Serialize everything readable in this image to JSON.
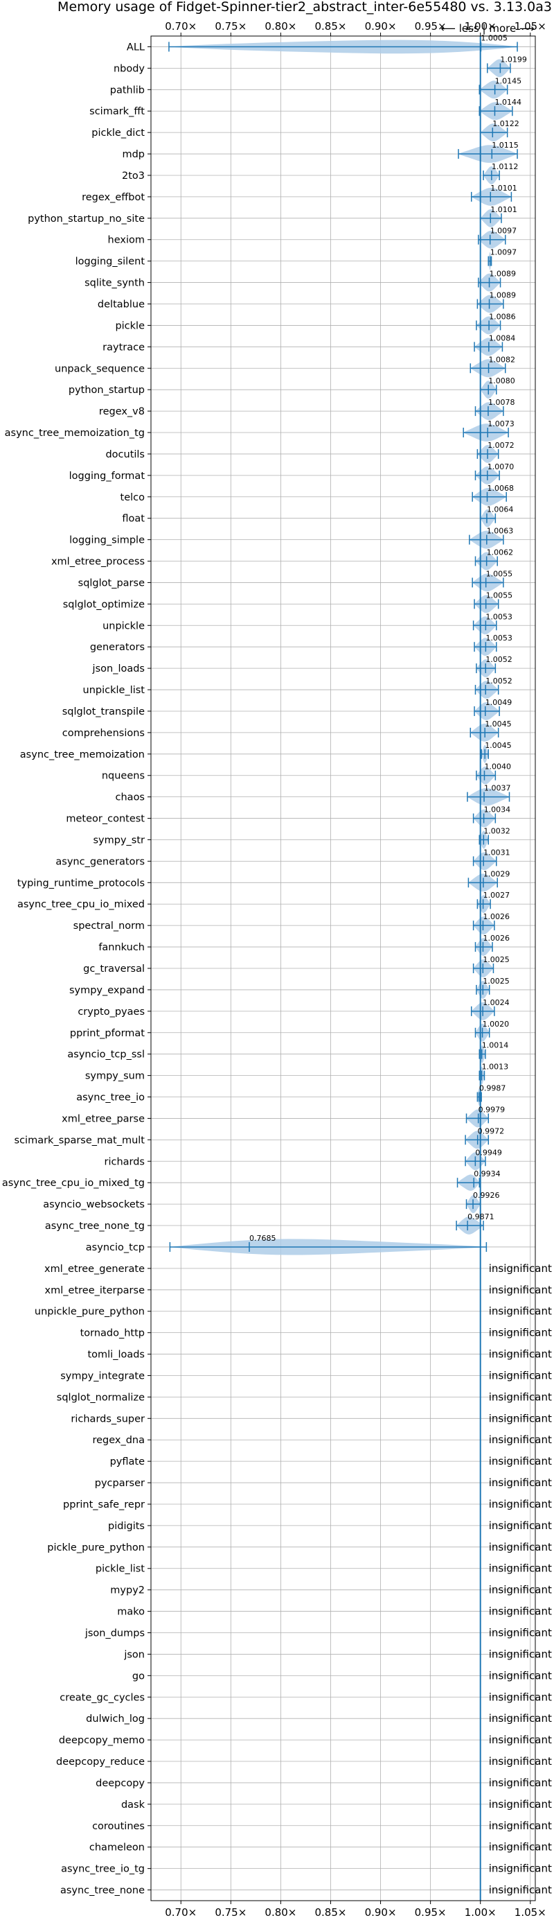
{
  "chart_data": {
    "type": "violin",
    "title": "Memory usage of Fidget-Spinner-tier2_abstract_inter-6e55480 vs. 3.13.0a3",
    "xlabel": "",
    "ylabel": "",
    "xlim": [
      0.67,
      1.055
    ],
    "xticks": [
      0.7,
      0.75,
      0.8,
      0.85,
      0.9,
      0.95,
      1.0,
      1.05
    ],
    "xtick_labels": [
      "0.70×",
      "0.75×",
      "0.80×",
      "0.85×",
      "0.90×",
      "0.95×",
      "1.00×",
      "1.05×"
    ],
    "direction_label": "⟵ less | more ⟶",
    "reference_line": 1.0,
    "grid": true,
    "insignificant_label": "insignificant",
    "color": "#1f77b4",
    "violin_color": "#aecde8",
    "benchmarks": [
      {
        "name": "ALL",
        "value": 1.0005,
        "label": "1.0005",
        "min": 0.688,
        "max": 1.037
      },
      {
        "name": "nbody",
        "value": 1.0199,
        "label": "1.0199",
        "min": 1.007,
        "max": 1.03
      },
      {
        "name": "pathlib",
        "value": 1.0145,
        "label": "1.0145",
        "min": 0.999,
        "max": 1.027
      },
      {
        "name": "scimark_fft",
        "value": 1.0144,
        "label": "1.0144",
        "min": 0.999,
        "max": 1.032
      },
      {
        "name": "pickle_dict",
        "value": 1.0122,
        "label": "1.0122",
        "min": 1.0,
        "max": 1.027
      },
      {
        "name": "mdp",
        "value": 1.0115,
        "label": "1.0115",
        "min": 0.978,
        "max": 1.037
      },
      {
        "name": "2to3",
        "value": 1.0112,
        "label": "1.0112",
        "min": 1.003,
        "max": 1.019
      },
      {
        "name": "regex_effbot",
        "value": 1.0101,
        "label": "1.0101",
        "min": 0.991,
        "max": 1.031
      },
      {
        "name": "python_startup_no_site",
        "value": 1.0101,
        "label": "1.0101",
        "min": 1.0,
        "max": 1.021
      },
      {
        "name": "hexiom",
        "value": 1.0097,
        "label": "1.0097",
        "min": 0.998,
        "max": 1.025
      },
      {
        "name": "logging_silent",
        "value": 1.0097,
        "label": "1.0097",
        "min": 1.008,
        "max": 1.011
      },
      {
        "name": "sqlite_synth",
        "value": 1.0089,
        "label": "1.0089",
        "min": 0.998,
        "max": 1.02
      },
      {
        "name": "deltablue",
        "value": 1.0089,
        "label": "1.0089",
        "min": 0.997,
        "max": 1.023
      },
      {
        "name": "pickle",
        "value": 1.0086,
        "label": "1.0086",
        "min": 0.996,
        "max": 1.02
      },
      {
        "name": "raytrace",
        "value": 1.0084,
        "label": "1.0084",
        "min": 0.994,
        "max": 1.022
      },
      {
        "name": "unpack_sequence",
        "value": 1.0082,
        "label": "1.0082",
        "min": 0.99,
        "max": 1.025
      },
      {
        "name": "python_startup",
        "value": 1.008,
        "label": "1.0080",
        "min": 1.0,
        "max": 1.016
      },
      {
        "name": "regex_v8",
        "value": 1.0078,
        "label": "1.0078",
        "min": 0.995,
        "max": 1.023
      },
      {
        "name": "async_tree_memoization_tg",
        "value": 1.0073,
        "label": "1.0073",
        "min": 0.983,
        "max": 1.028
      },
      {
        "name": "docutils",
        "value": 1.0072,
        "label": "1.0072",
        "min": 0.997,
        "max": 1.018
      },
      {
        "name": "logging_format",
        "value": 1.007,
        "label": "1.0070",
        "min": 0.995,
        "max": 1.019
      },
      {
        "name": "telco",
        "value": 1.0068,
        "label": "1.0068",
        "min": 0.992,
        "max": 1.026
      },
      {
        "name": "float",
        "value": 1.0064,
        "label": "1.0064",
        "min": 1.0,
        "max": 1.015
      },
      {
        "name": "logging_simple",
        "value": 1.0063,
        "label": "1.0063",
        "min": 0.989,
        "max": 1.023
      },
      {
        "name": "xml_etree_process",
        "value": 1.0062,
        "label": "1.0062",
        "min": 0.995,
        "max": 1.017
      },
      {
        "name": "sqlglot_parse",
        "value": 1.0055,
        "label": "1.0055",
        "min": 0.992,
        "max": 1.023
      },
      {
        "name": "sqlglot_optimize",
        "value": 1.0055,
        "label": "1.0055",
        "min": 0.994,
        "max": 1.018
      },
      {
        "name": "unpickle",
        "value": 1.0053,
        "label": "1.0053",
        "min": 0.993,
        "max": 1.016
      },
      {
        "name": "generators",
        "value": 1.0053,
        "label": "1.0053",
        "min": 0.994,
        "max": 1.016
      },
      {
        "name": "json_loads",
        "value": 1.0052,
        "label": "1.0052",
        "min": 0.996,
        "max": 1.015
      },
      {
        "name": "unpickle_list",
        "value": 1.0052,
        "label": "1.0052",
        "min": 0.995,
        "max": 1.018
      },
      {
        "name": "sqlglot_transpile",
        "value": 1.0049,
        "label": "1.0049",
        "min": 0.994,
        "max": 1.019
      },
      {
        "name": "comprehensions",
        "value": 1.0045,
        "label": "1.0045",
        "min": 0.99,
        "max": 1.018
      },
      {
        "name": "async_tree_memoization",
        "value": 1.0045,
        "label": "1.0045",
        "min": 1.001,
        "max": 1.008
      },
      {
        "name": "nqueens",
        "value": 1.004,
        "label": "1.0040",
        "min": 0.996,
        "max": 1.015
      },
      {
        "name": "chaos",
        "value": 1.0037,
        "label": "1.0037",
        "min": 0.987,
        "max": 1.029
      },
      {
        "name": "meteor_contest",
        "value": 1.0034,
        "label": "1.0034",
        "min": 0.993,
        "max": 1.015
      },
      {
        "name": "sympy_str",
        "value": 1.0032,
        "label": "1.0032",
        "min": 0.999,
        "max": 1.008
      },
      {
        "name": "async_generators",
        "value": 1.0031,
        "label": "1.0031",
        "min": 0.993,
        "max": 1.016
      },
      {
        "name": "typing_runtime_protocols",
        "value": 1.0029,
        "label": "1.0029",
        "min": 0.988,
        "max": 1.017
      },
      {
        "name": "async_tree_cpu_io_mixed",
        "value": 1.0027,
        "label": "1.0027",
        "min": 0.997,
        "max": 1.01
      },
      {
        "name": "spectral_norm",
        "value": 1.0026,
        "label": "1.0026",
        "min": 0.993,
        "max": 1.014
      },
      {
        "name": "fannkuch",
        "value": 1.0026,
        "label": "1.0026",
        "min": 0.995,
        "max": 1.012
      },
      {
        "name": "gc_traversal",
        "value": 1.0025,
        "label": "1.0025",
        "min": 0.993,
        "max": 1.013
      },
      {
        "name": "sympy_expand",
        "value": 1.0025,
        "label": "1.0025",
        "min": 0.996,
        "max": 1.009
      },
      {
        "name": "crypto_pyaes",
        "value": 1.0024,
        "label": "1.0024",
        "min": 0.991,
        "max": 1.014
      },
      {
        "name": "pprint_pformat",
        "value": 1.002,
        "label": "1.0020",
        "min": 0.995,
        "max": 1.009
      },
      {
        "name": "asyncio_tcp_ssl",
        "value": 1.0014,
        "label": "1.0014",
        "min": 0.999,
        "max": 1.005
      },
      {
        "name": "sympy_sum",
        "value": 1.0013,
        "label": "1.0013",
        "min": 0.999,
        "max": 1.004
      },
      {
        "name": "async_tree_io",
        "value": 0.9987,
        "label": "0.9987",
        "min": 0.997,
        "max": 1.001
      },
      {
        "name": "xml_etree_parse",
        "value": 0.9979,
        "label": "0.9979",
        "min": 0.986,
        "max": 1.008
      },
      {
        "name": "scimark_sparse_mat_mult",
        "value": 0.9972,
        "label": "0.9972",
        "min": 0.985,
        "max": 1.008
      },
      {
        "name": "richards",
        "value": 0.9949,
        "label": "0.9949",
        "min": 0.985,
        "max": 1.005
      },
      {
        "name": "async_tree_cpu_io_mixed_tg",
        "value": 0.9934,
        "label": "0.9934",
        "min": 0.977,
        "max": 0.999
      },
      {
        "name": "asyncio_websockets",
        "value": 0.9926,
        "label": "0.9926",
        "min": 0.986,
        "max": 1.0
      },
      {
        "name": "async_tree_none_tg",
        "value": 0.9871,
        "label": "0.9871",
        "min": 0.976,
        "max": 1.003
      },
      {
        "name": "asyncio_tcp",
        "value": 0.7685,
        "label": "0.7685",
        "min": 0.689,
        "max": 1.006
      },
      {
        "name": "xml_etree_generate",
        "label": "insignificant"
      },
      {
        "name": "xml_etree_iterparse",
        "label": "insignificant"
      },
      {
        "name": "unpickle_pure_python",
        "label": "insignificant"
      },
      {
        "name": "tornado_http",
        "label": "insignificant"
      },
      {
        "name": "tomli_loads",
        "label": "insignificant"
      },
      {
        "name": "sympy_integrate",
        "label": "insignificant"
      },
      {
        "name": "sqlglot_normalize",
        "label": "insignificant"
      },
      {
        "name": "richards_super",
        "label": "insignificant"
      },
      {
        "name": "regex_dna",
        "label": "insignificant"
      },
      {
        "name": "pyflate",
        "label": "insignificant"
      },
      {
        "name": "pycparser",
        "label": "insignificant"
      },
      {
        "name": "pprint_safe_repr",
        "label": "insignificant"
      },
      {
        "name": "pidigits",
        "label": "insignificant"
      },
      {
        "name": "pickle_pure_python",
        "label": "insignificant"
      },
      {
        "name": "pickle_list",
        "label": "insignificant"
      },
      {
        "name": "mypy2",
        "label": "insignificant"
      },
      {
        "name": "mako",
        "label": "insignificant"
      },
      {
        "name": "json_dumps",
        "label": "insignificant"
      },
      {
        "name": "json",
        "label": "insignificant"
      },
      {
        "name": "go",
        "label": "insignificant"
      },
      {
        "name": "create_gc_cycles",
        "label": "insignificant"
      },
      {
        "name": "dulwich_log",
        "label": "insignificant"
      },
      {
        "name": "deepcopy_memo",
        "label": "insignificant"
      },
      {
        "name": "deepcopy_reduce",
        "label": "insignificant"
      },
      {
        "name": "deepcopy",
        "label": "insignificant"
      },
      {
        "name": "dask",
        "label": "insignificant"
      },
      {
        "name": "coroutines",
        "label": "insignificant"
      },
      {
        "name": "chameleon",
        "label": "insignificant"
      },
      {
        "name": "async_tree_io_tg",
        "label": "insignificant"
      },
      {
        "name": "async_tree_none",
        "label": "insignificant"
      }
    ]
  }
}
